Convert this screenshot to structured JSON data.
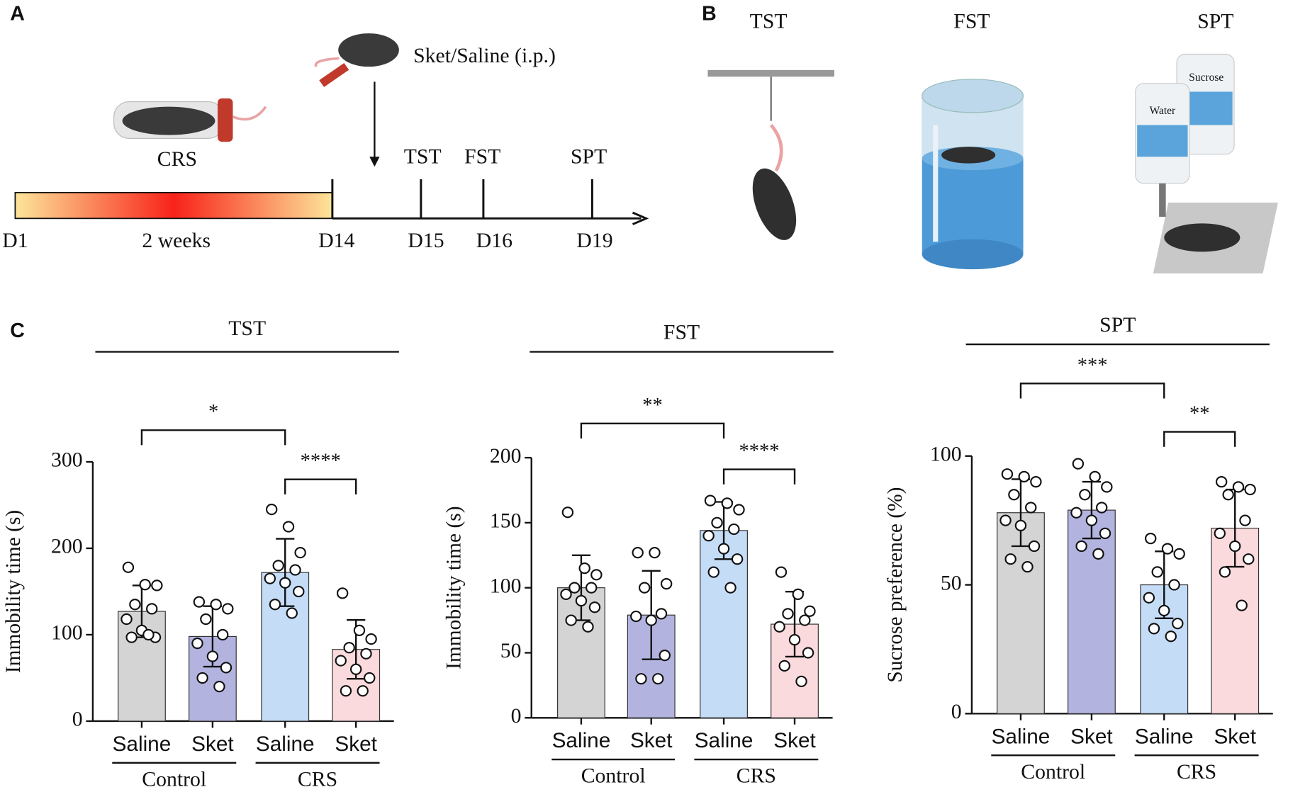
{
  "panel_a": {
    "label": "A",
    "crs": "CRS",
    "injection": "Sket/Saline (i.p.)",
    "tests": [
      "TST",
      "FST",
      "SPT"
    ],
    "days": [
      "D1",
      "2 weeks",
      "D14",
      "D15",
      "D16",
      "D19"
    ]
  },
  "panel_b": {
    "label": "B",
    "tests": [
      "TST",
      "FST",
      "SPT"
    ],
    "bottles": [
      "Water",
      "Sucrose"
    ]
  },
  "panel_c": {
    "label": "C"
  },
  "chart_data": [
    {
      "type": "bar",
      "title": "TST",
      "ylabel": "Immobility time (s)",
      "categories": [
        "Saline",
        "Sket",
        "Saline",
        "Sket"
      ],
      "groups": [
        "Control",
        "CRS"
      ],
      "colors": [
        "#d4d4d4",
        "#b3b3e0",
        "#c5dcf7",
        "#fadadd"
      ],
      "values": [
        127,
        98,
        172,
        83
      ],
      "errors": [
        30,
        35,
        39,
        34
      ],
      "points": [
        [
          178,
          158,
          157,
          135,
          130,
          118,
          105,
          97,
          97,
          100
        ],
        [
          138,
          135,
          130,
          118,
          100,
          90,
          75,
          62,
          50,
          40
        ],
        [
          245,
          225,
          195,
          180,
          175,
          165,
          160,
          150,
          135,
          125
        ],
        [
          148,
          105,
          95,
          85,
          78,
          70,
          60,
          50,
          35,
          35
        ]
      ],
      "ylim": [
        0,
        300
      ],
      "yticks": [
        0,
        100,
        200,
        300
      ],
      "significance": [
        "*",
        "****"
      ]
    },
    {
      "type": "bar",
      "title": "FST",
      "ylabel": "Immobility time (s)",
      "categories": [
        "Saline",
        "Sket",
        "Saline",
        "Sket"
      ],
      "groups": [
        "Control",
        "CRS"
      ],
      "colors": [
        "#d4d4d4",
        "#b3b3e0",
        "#c5dcf7",
        "#fadadd"
      ],
      "values": [
        100,
        79,
        144,
        72
      ],
      "errors": [
        25,
        34,
        22,
        25
      ],
      "points": [
        [
          158,
          115,
          110,
          100,
          100,
          95,
          90,
          85,
          75,
          70
        ],
        [
          127,
          127,
          103,
          100,
          80,
          78,
          75,
          48,
          30,
          30
        ],
        [
          167,
          165,
          160,
          150,
          145,
          140,
          130,
          122,
          112,
          100
        ],
        [
          112,
          95,
          82,
          80,
          75,
          70,
          60,
          50,
          40,
          28
        ]
      ],
      "ylim": [
        0,
        200
      ],
      "yticks": [
        0,
        50,
        100,
        150,
        200
      ],
      "significance": [
        "**",
        "****"
      ]
    },
    {
      "type": "bar",
      "title": "SPT",
      "ylabel": "Sucrose preference (%)",
      "categories": [
        "Saline",
        "Sket",
        "Saline",
        "Sket"
      ],
      "groups": [
        "Control",
        "CRS"
      ],
      "colors": [
        "#d4d4d4",
        "#b3b3e0",
        "#c5dcf7",
        "#fadadd"
      ],
      "values": [
        78,
        79,
        50,
        72
      ],
      "errors": [
        13,
        11,
        13,
        15
      ],
      "points": [
        [
          93,
          92,
          90,
          85,
          80,
          75,
          73,
          65,
          60,
          57
        ],
        [
          97,
          92,
          88,
          85,
          80,
          78,
          75,
          70,
          65,
          62
        ],
        [
          68,
          64,
          62,
          55,
          50,
          45,
          40,
          35,
          33,
          30
        ],
        [
          90,
          88,
          87,
          85,
          75,
          70,
          65,
          60,
          55,
          42
        ]
      ],
      "ylim": [
        0,
        100
      ],
      "yticks": [
        0,
        50,
        100
      ],
      "significance": [
        "***",
        "**"
      ]
    }
  ]
}
